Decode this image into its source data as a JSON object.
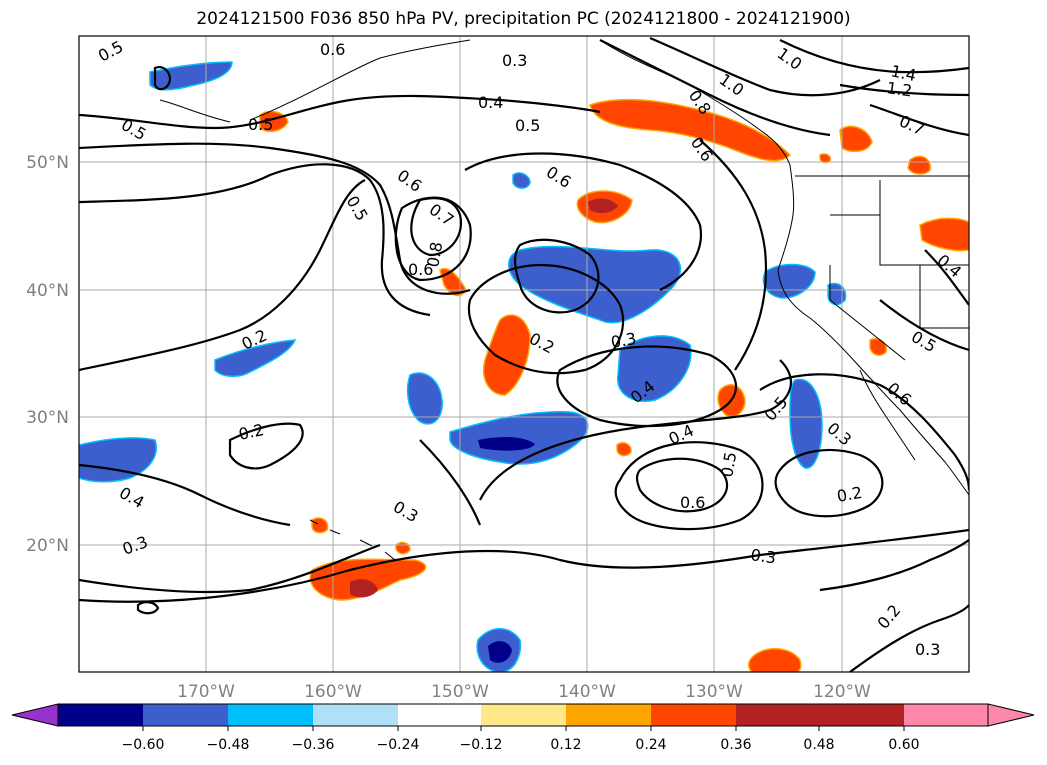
{
  "title": "2024121500 F036 850 hPa PV, precipitation PC (2024121800 - 2024121900)",
  "lat_labels": [
    "50°N",
    "40°N",
    "30°N",
    "20°N"
  ],
  "lon_labels": [
    "170°W",
    "160°W",
    "150°W",
    "140°W",
    "130°W",
    "120°W"
  ],
  "colorbar": {
    "tick_labels": [
      "−0.60",
      "−0.48",
      "−0.36",
      "−0.24",
      "−0.12",
      "0.12",
      "0.24",
      "0.36",
      "0.48",
      "0.60"
    ],
    "colors": [
      "#9932cc",
      "#00008b",
      "#3c5fcd",
      "#00bfff",
      "#b0e0f8",
      "#ffffff",
      "#ffe88a",
      "#ffa500",
      "#ff4500",
      "#b22222",
      "#ff88aa"
    ]
  },
  "contour_labels": [
    "0.5",
    "0.6",
    "0.3",
    "0.4",
    "0.5",
    "0.6",
    "0.7",
    "0.8",
    "0.6",
    "0.2",
    "0.3",
    "0.4",
    "0.5",
    "0.6",
    "0.2",
    "0.2",
    "0.4",
    "0.3",
    "0.3",
    "1.0",
    "1.0",
    "1.4",
    "1.2",
    "0.8",
    "0.6",
    "0.7",
    "0.5",
    "0.4",
    "0.5",
    "0.6",
    "0.3",
    "0.2",
    "0.3",
    "0.3",
    "0.2",
    "0.5",
    "0.5",
    "0.6",
    "0.4",
    "0.5"
  ],
  "colors": {
    "pv_contour": "#000000",
    "grid": "#aaaaaa",
    "coast": "#000000",
    "negative_strong": "#00008b",
    "negative_mid": "#3c5fcd",
    "negative_light": "#00bfff",
    "positive_mid": "#ff4500",
    "positive_strong": "#b22222",
    "positive_light": "#ffa500"
  }
}
